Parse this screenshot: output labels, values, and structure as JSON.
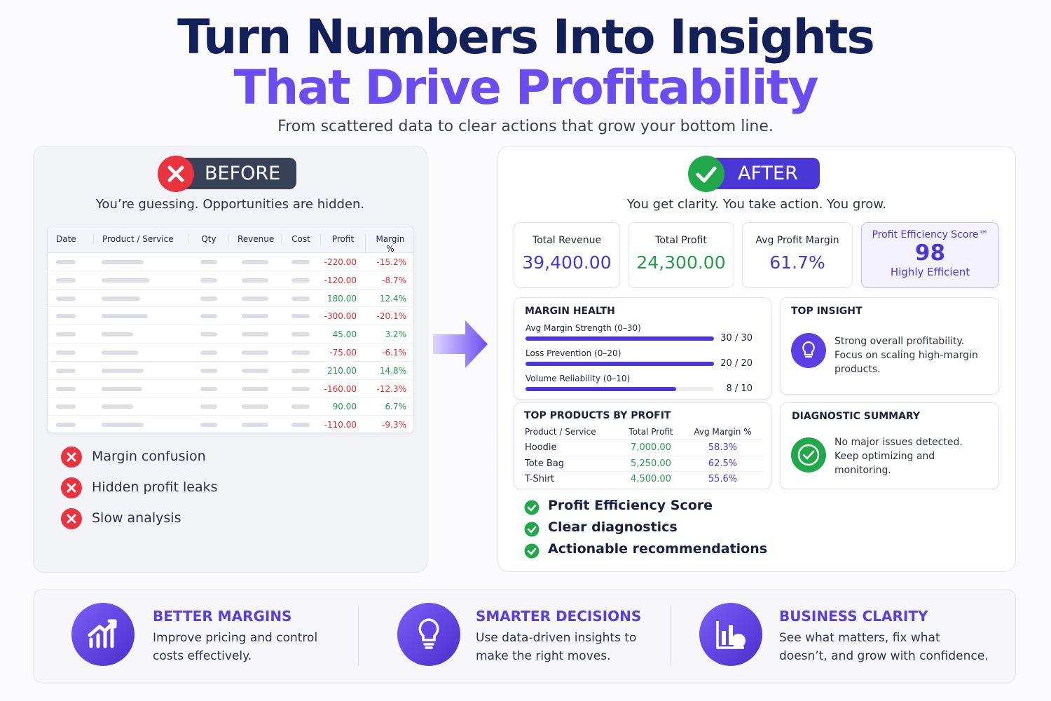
{
  "header": {
    "title_line1": "Turn Numbers Into Insights",
    "title_line2": "That Drive Profitability",
    "subtitle": "From scattered data to clear actions that grow your bottom line."
  },
  "before": {
    "badge": "BEFORE",
    "caption": "You’re guessing. Opportunities are hidden.",
    "table": {
      "columns": [
        "Date",
        "Product / Service",
        "Qty",
        "Revenue",
        "Cost",
        "Profit",
        "Margin %"
      ],
      "rows": [
        [
          "-220.00",
          "-15.2%"
        ],
        [
          "-120.00",
          "-8.7%"
        ],
        [
          "180.00",
          "12.4%"
        ],
        [
          "-300.00",
          "-20.1%"
        ],
        [
          "45.00",
          "3.2%"
        ],
        [
          "-75.00",
          "-6.1%"
        ],
        [
          "210.00",
          "14.8%"
        ],
        [
          "-160.00",
          "-12.3%"
        ],
        [
          "90.00",
          "6.7%"
        ],
        [
          "-110.00",
          "-9.3%"
        ]
      ]
    },
    "issues": [
      "Margin confusion",
      "Hidden profit leaks",
      "Slow analysis"
    ]
  },
  "after": {
    "badge": "AFTER",
    "caption": "You get clarity. You take action. You grow.",
    "kpis": [
      {
        "label": "Total Revenue",
        "value": "39,400.00",
        "color": "#4636d6"
      },
      {
        "label": "Total Profit",
        "value": "24,300.00",
        "color": "#1f9d48"
      },
      {
        "label": "Avg Profit Margin",
        "value": "61.7%",
        "color": "#4636d6"
      }
    ],
    "score": {
      "label": "Profit Efficiency Score™",
      "value": 98,
      "rating": "Highly Efficient"
    },
    "margin_health": {
      "title": "MARGIN HEALTH",
      "items": [
        {
          "label": "Avg Margin Strength (0–30)",
          "score": 30,
          "max": 30,
          "score_label": "30 / 30"
        },
        {
          "label": "Loss Prevention (0–20)",
          "score": 20,
          "max": 20,
          "score_label": "20 / 20"
        },
        {
          "label": "Volume Reliability (0–10)",
          "score": 8,
          "max": 10,
          "score_label": "8 / 10"
        }
      ]
    },
    "top_insight": {
      "title": "TOP INSIGHT",
      "text": "Strong overall profitability. Focus on scaling high-margin products."
    },
    "top_products": {
      "title": "TOP PRODUCTS BY PROFIT",
      "columns": [
        "Product / Service",
        "Total Profit",
        "Avg Margin %"
      ],
      "rows": [
        [
          "Hoodie",
          "7,000.00",
          "58.3%"
        ],
        [
          "Tote Bag",
          "5,250.00",
          "62.5%"
        ],
        [
          "T-Shirt",
          "4,500.00",
          "55.6%"
        ]
      ]
    },
    "diagnostic": {
      "title": "DIAGNOSTIC SUMMARY",
      "text": "No major issues detected. Keep optimizing and monitoring."
    },
    "features": [
      "Profit Efficiency Score",
      "Clear diagnostics",
      "Actionable recommendations"
    ]
  },
  "benefits": [
    {
      "title": "BETTER MARGINS",
      "text": "Improve pricing and control costs effectively."
    },
    {
      "title": "SMARTER DECISIONS",
      "text": "Use data-driven insights to make the right moves."
    },
    {
      "title": "BUSINESS CLARITY",
      "text": "See what matters, fix what doesn’t, and grow with confidence."
    }
  ]
}
